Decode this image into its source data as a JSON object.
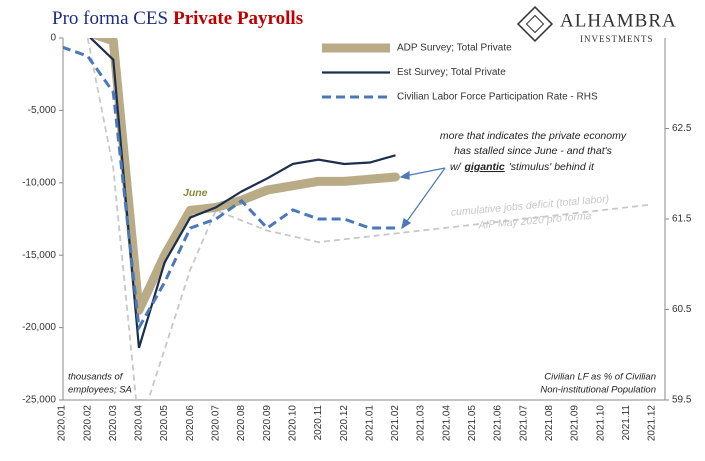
{
  "chart_data": {
    "type": "line",
    "title": [
      "Pro forma CES",
      "Private Payrolls"
    ],
    "logo": [
      "ALHAMBRA",
      "INVESTMENTS"
    ],
    "categories": [
      "2020.01",
      "2020.02",
      "2020.03",
      "2020.04",
      "2020.05",
      "2020.06",
      "2020.07",
      "2020.08",
      "2020.09",
      "2020.10",
      "2020.11",
      "2020.12",
      "2021.01",
      "2021.02",
      "2021.03",
      "2021.04",
      "2021.05",
      "2021.06",
      "2021.07",
      "2021.08",
      "2021.09",
      "2021.10",
      "2021.11",
      "2021.12"
    ],
    "series": [
      {
        "name": "ADP Survey; Total Private",
        "color": "#b9ab86",
        "values": [
          300,
          400,
          -200,
          -18800,
          -15000,
          -11900,
          -11700,
          -11200,
          -10500,
          -10200,
          -9900,
          -9900,
          -9750,
          -9600,
          null,
          null,
          null,
          null,
          null,
          null,
          null,
          null,
          null,
          null
        ]
      },
      {
        "name": "Est Survey; Total Private",
        "color": "#1c2e4e",
        "values": [
          200,
          200,
          -1500,
          -21400,
          -15500,
          -12400,
          -11700,
          -10600,
          -9700,
          -8700,
          -8400,
          -8700,
          -8600,
          -8100,
          null,
          null,
          null,
          null,
          null,
          null,
          null,
          null,
          null,
          null
        ]
      },
      {
        "name": "Civilian Labor Force Participation Rate - RHS",
        "color": "#4a78b8",
        "axis": "y2",
        "values": [
          63.4,
          63.3,
          62.9,
          60.3,
          60.8,
          61.4,
          61.5,
          61.7,
          61.4,
          61.6,
          61.5,
          61.5,
          61.4,
          61.4,
          null,
          null,
          null,
          null,
          null,
          null,
          null,
          null,
          null,
          null
        ]
      },
      {
        "color": "#c8c8c8",
        "values": [
          null,
          0,
          -9000,
          -27000,
          -21500,
          -16000,
          -11900,
          -12600,
          -13300,
          -13700,
          -14100,
          -13900,
          -13700,
          -13500,
          -13300,
          -13100,
          -12900,
          -12700,
          -12500,
          -12300,
          -12100,
          -11900,
          -11700,
          -11500
        ]
      }
    ],
    "ylim": [
      -25000,
      0
    ],
    "yticks": [
      {
        "value": 0,
        "label": "0"
      },
      {
        "value": -5000,
        "label": "-5,000"
      },
      {
        "value": -10000,
        "label": "-10,000"
      },
      {
        "value": -15000,
        "label": "-15,000"
      },
      {
        "value": -20000,
        "label": "-20,000"
      },
      {
        "value": -25000,
        "label": "-25,000"
      }
    ],
    "y2lim": [
      59.5,
      63.5
    ],
    "y2ticks": [
      59.5,
      60.5,
      61.5,
      62.5
    ],
    "annotations": {
      "june": "June",
      "comment": [
        "more that indicates the private economy",
        "has stalled since June - and that's"
      ],
      "comment_last": [
        "w/",
        "gigantic",
        "'stimulus' behind it"
      ],
      "deficit": [
        "cumulative jobs deficit (total labor)",
        "AIP May 2020 pro forma"
      ],
      "left_unit": [
        "thousands of",
        "employees; SA"
      ],
      "right_unit": [
        "Civilian LF as % of Civilian",
        "Non-institutional Population"
      ]
    }
  }
}
